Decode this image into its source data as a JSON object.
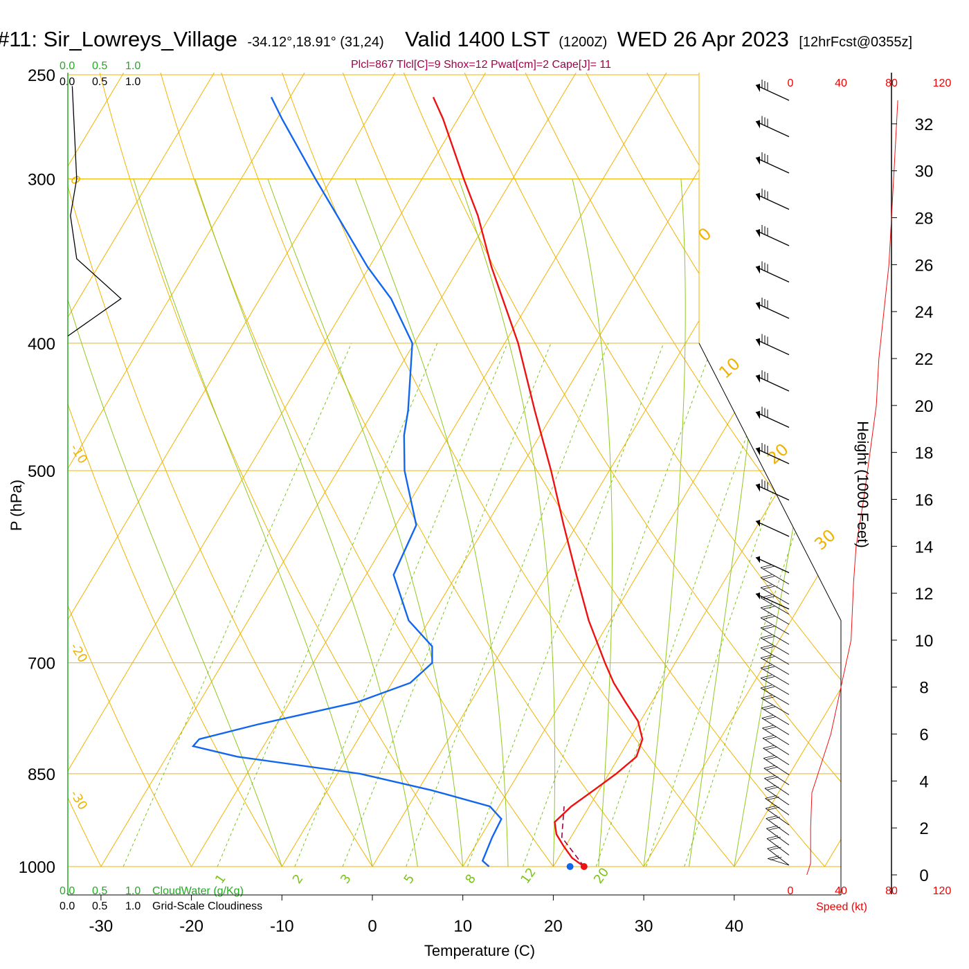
{
  "title": {
    "station": "#11: Sir_Lowreys_Village",
    "coords": "-34.12°,18.91° (31,24)",
    "valid": "Valid 1400 LST",
    "zulu": "(1200Z)",
    "date": "WED 26 Apr 2023",
    "forecast": "[12hrFcst@0355z]"
  },
  "params": "Plcl=867 Tlcl[C]=9 Shox=12 Pwat[cm]=2 Cape[J]= 11",
  "cloud_scales": {
    "cloudwater_top": [
      "0.0",
      "0.5",
      "1.0"
    ],
    "cloudiness_top": [
      "0.0",
      "0.5",
      "1.0"
    ],
    "cloudwater_bottom": [
      "0.0",
      "0.5",
      "1.0"
    ],
    "cloudwater_label": "CloudWater (g/Kg)",
    "cloudiness_bottom": [
      "0.0",
      "0.5",
      "1.0"
    ],
    "cloudiness_label": "Grid-Scale Cloudiness"
  },
  "speed_axis": {
    "ticks": [
      "0",
      "40",
      "80",
      "120"
    ],
    "label": "Speed (kt)"
  },
  "height_axis": {
    "label": "Height (1000 Feet)",
    "ticks": [
      0,
      2,
      4,
      6,
      8,
      10,
      12,
      14,
      16,
      18,
      20,
      22,
      24,
      26,
      28,
      30,
      32
    ]
  },
  "colors": {
    "temperature": "#ee1111",
    "dewpoint": "#1166ee",
    "isotherm": "#f0b400",
    "mixing_ratio": "#7cc41a",
    "moist_adiabat": "#8fc820",
    "cloudwater": "#22aa22",
    "parcel": "#a0004a"
  },
  "chart_data": {
    "type": "skew-t",
    "xlabel": "Temperature (C)",
    "ylabel": "P (hPa)",
    "x_ticks": [
      -30,
      -20,
      -10,
      0,
      10,
      20,
      30,
      40
    ],
    "p_ticks": [
      250,
      300,
      400,
      500,
      700,
      850,
      1000
    ],
    "p_range": [
      1000,
      250
    ],
    "isotherm_labels": [
      -30,
      -20,
      -10,
      0,
      10,
      20,
      30
    ],
    "mixing_ratio_labels": [
      "1",
      "2",
      "3",
      "5",
      "8",
      "12",
      "20"
    ],
    "temperature": [
      {
        "p": 1000,
        "t": 23.4
      },
      {
        "p": 985,
        "t": 21.5
      },
      {
        "p": 965,
        "t": 19.8
      },
      {
        "p": 945,
        "t": 18.2
      },
      {
        "p": 925,
        "t": 17.2
      },
      {
        "p": 900,
        "t": 18.0
      },
      {
        "p": 875,
        "t": 19.4
      },
      {
        "p": 850,
        "t": 20.8
      },
      {
        "p": 825,
        "t": 21.9
      },
      {
        "p": 800,
        "t": 21.4
      },
      {
        "p": 775,
        "t": 19.7
      },
      {
        "p": 750,
        "t": 17.1
      },
      {
        "p": 725,
        "t": 14.5
      },
      {
        "p": 700,
        "t": 12.2
      },
      {
        "p": 650,
        "t": 7.6
      },
      {
        "p": 600,
        "t": 3.2
      },
      {
        "p": 550,
        "t": -1.5
      },
      {
        "p": 500,
        "t": -6.5
      },
      {
        "p": 450,
        "t": -12.3
      },
      {
        "p": 400,
        "t": -18.6
      },
      {
        "p": 350,
        "t": -26.6
      },
      {
        "p": 320,
        "t": -31.5
      },
      {
        "p": 300,
        "t": -35.5
      },
      {
        "p": 270,
        "t": -41.8
      },
      {
        "p": 260,
        "t": -44.3
      }
    ],
    "dewpoint": [
      {
        "p": 1000,
        "t": 12.9
      },
      {
        "p": 990,
        "t": 11.8
      },
      {
        "p": 950,
        "t": 11.3
      },
      {
        "p": 920,
        "t": 11.1
      },
      {
        "p": 900,
        "t": 9.0
      },
      {
        "p": 875,
        "t": 1.5
      },
      {
        "p": 850,
        "t": -7.5
      },
      {
        "p": 825,
        "t": -22.2
      },
      {
        "p": 810,
        "t": -27.8
      },
      {
        "p": 800,
        "t": -27.6
      },
      {
        "p": 780,
        "t": -22.2
      },
      {
        "p": 750,
        "t": -12.6
      },
      {
        "p": 725,
        "t": -8.0
      },
      {
        "p": 700,
        "t": -6.9
      },
      {
        "p": 680,
        "t": -8.0
      },
      {
        "p": 650,
        "t": -12.3
      },
      {
        "p": 600,
        "t": -17.0
      },
      {
        "p": 550,
        "t": -17.8
      },
      {
        "p": 500,
        "t": -22.7
      },
      {
        "p": 470,
        "t": -25.1
      },
      {
        "p": 450,
        "t": -26.3
      },
      {
        "p": 400,
        "t": -30.3
      },
      {
        "p": 370,
        "t": -35.6
      },
      {
        "p": 350,
        "t": -40.3
      },
      {
        "p": 300,
        "t": -51.9
      },
      {
        "p": 270,
        "t": -59.6
      },
      {
        "p": 260,
        "t": -62.2
      }
    ],
    "surface_temperature": 23.4,
    "surface_dewpoint": 12.9,
    "parcel": [
      {
        "p": 1000,
        "t": 23.4
      },
      {
        "p": 950,
        "t": 19.0
      },
      {
        "p": 900,
        "t": 17.2
      }
    ],
    "wind_speed_profile_kt": [
      {
        "h": 0.0,
        "s": 13
      },
      {
        "h": 0.5,
        "s": 16
      },
      {
        "h": 2.0,
        "s": 16
      },
      {
        "h": 3.5,
        "s": 17
      },
      {
        "h": 4.5,
        "s": 23
      },
      {
        "h": 6.0,
        "s": 32
      },
      {
        "h": 8.0,
        "s": 40
      },
      {
        "h": 10.0,
        "s": 48
      },
      {
        "h": 12.5,
        "s": 50
      },
      {
        "h": 14.0,
        "s": 52
      },
      {
        "h": 16.0,
        "s": 58
      },
      {
        "h": 18.0,
        "s": 63
      },
      {
        "h": 20.0,
        "s": 68
      },
      {
        "h": 22.0,
        "s": 70
      },
      {
        "h": 24.0,
        "s": 74
      },
      {
        "h": 26.0,
        "s": 78
      },
      {
        "h": 28.0,
        "s": 80
      },
      {
        "h": 30.0,
        "s": 82
      },
      {
        "h": 32.0,
        "s": 84
      },
      {
        "h": 33.0,
        "s": 85
      }
    ],
    "cloudiness_profile": [
      {
        "p": 255,
        "c": 0.05
      },
      {
        "p": 300,
        "c": 0.1
      },
      {
        "p": 320,
        "c": 0.03
      },
      {
        "p": 345,
        "c": 0.1
      },
      {
        "p": 370,
        "c": 0.6
      },
      {
        "p": 395,
        "c": 0.0
      }
    ]
  }
}
